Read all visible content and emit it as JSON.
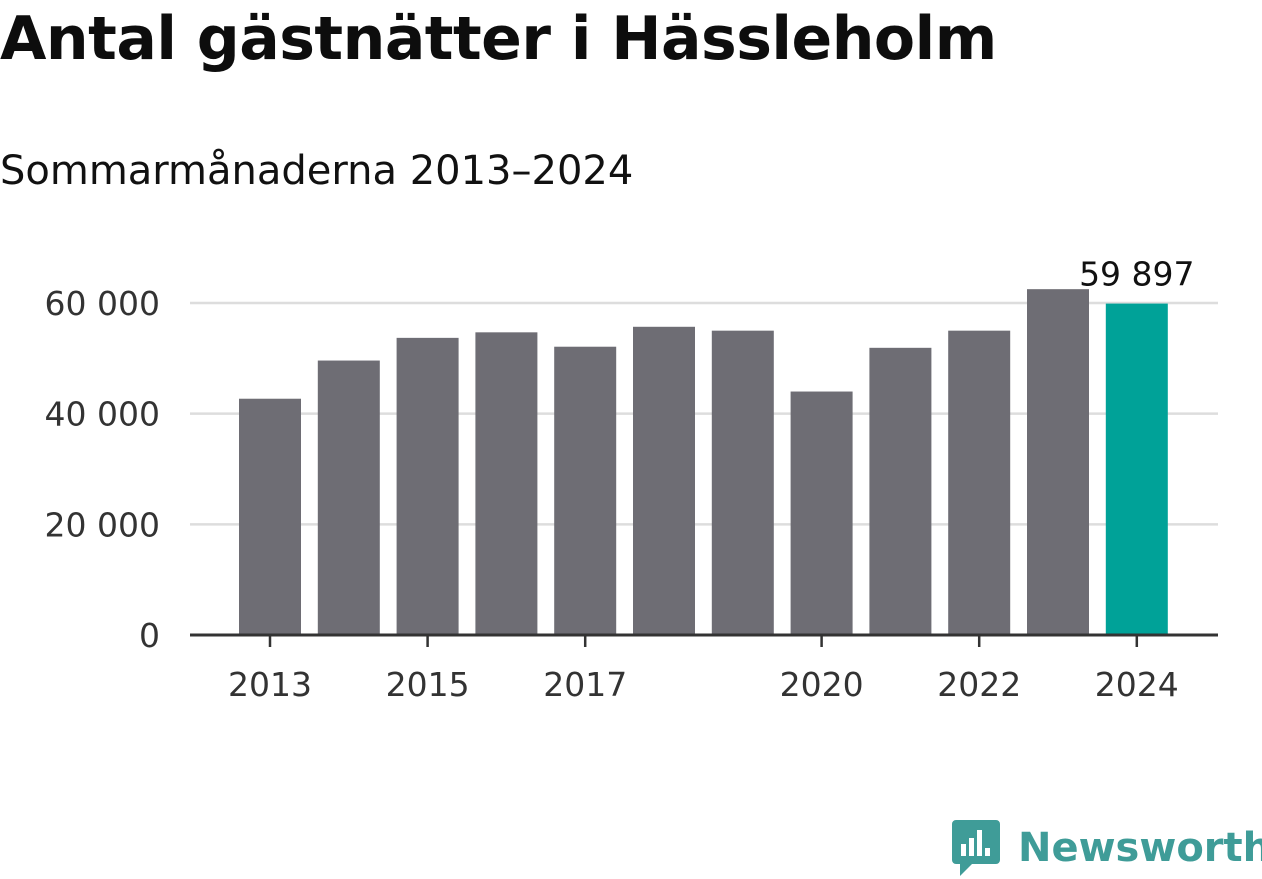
{
  "title": "Antal gästnätter i Hässleholm",
  "subtitle": "Sommarmånaderna 2013–2024",
  "brand": {
    "name": "Newsworthy",
    "icon": "newsworthy-logo-icon",
    "color": "#3f9c98"
  },
  "colors": {
    "bar": "#6e6d74",
    "highlight": "#00a298",
    "grid": "#dddddd",
    "axis": "#333333",
    "text": "#333333"
  },
  "chart_data": {
    "type": "bar",
    "x": [
      2013,
      2014,
      2015,
      2016,
      2017,
      2018,
      2019,
      2020,
      2021,
      2022,
      2023,
      2024
    ],
    "values": [
      42700,
      49600,
      53700,
      54700,
      52100,
      55700,
      55000,
      44000,
      51900,
      55000,
      62500,
      59897
    ],
    "highlight_index": 11,
    "data_labels": [
      {
        "index": 11,
        "text": "59 897"
      }
    ],
    "xticks": [
      {
        "value": 2013,
        "label": "2013"
      },
      {
        "value": 2015,
        "label": "2015"
      },
      {
        "value": 2017,
        "label": "2017"
      },
      {
        "value": 2020,
        "label": "2020"
      },
      {
        "value": 2022,
        "label": "2022"
      },
      {
        "value": 2024,
        "label": "2024"
      }
    ],
    "yticks": [
      {
        "value": 0,
        "label": "0"
      },
      {
        "value": 20000,
        "label": "20 000"
      },
      {
        "value": 40000,
        "label": "40 000"
      },
      {
        "value": 60000,
        "label": "60 000"
      }
    ],
    "ylim": [
      0,
      60000
    ],
    "grid": true,
    "xlabel": "",
    "ylabel": ""
  }
}
